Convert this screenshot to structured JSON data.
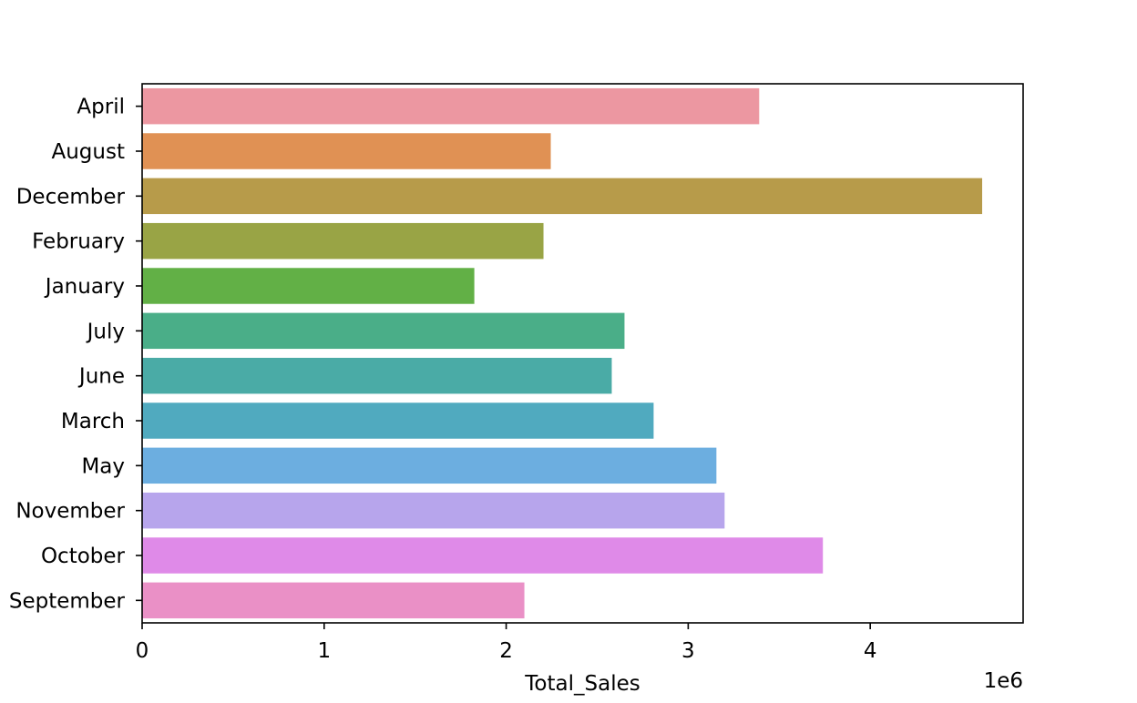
{
  "chart_data": {
    "type": "bar",
    "orientation": "horizontal",
    "categories": [
      "April",
      "August",
      "December",
      "February",
      "January",
      "July",
      "June",
      "March",
      "May",
      "November",
      "October",
      "September"
    ],
    "values": [
      3390000,
      2245000,
      4615000,
      2205000,
      1825000,
      2650000,
      2580000,
      2810000,
      3155000,
      3200000,
      3740000,
      2100000
    ],
    "colors": [
      "#ec97a1",
      "#e09154",
      "#b79b4a",
      "#99a445",
      "#62b046",
      "#4aae88",
      "#4aaba6",
      "#50aabf",
      "#6caee0",
      "#b7a5ec",
      "#df8ae8",
      "#ea90c6"
    ],
    "title": "",
    "xlabel": "Total_Sales",
    "ylabel": "",
    "xlim": [
      0,
      4840000
    ],
    "xticks": [
      0,
      1,
      2,
      3,
      4
    ],
    "xtick_labels": [
      "0",
      "1",
      "2",
      "3",
      "4"
    ],
    "x_offset_label": "1e6",
    "grid": false,
    "legend": "none"
  }
}
